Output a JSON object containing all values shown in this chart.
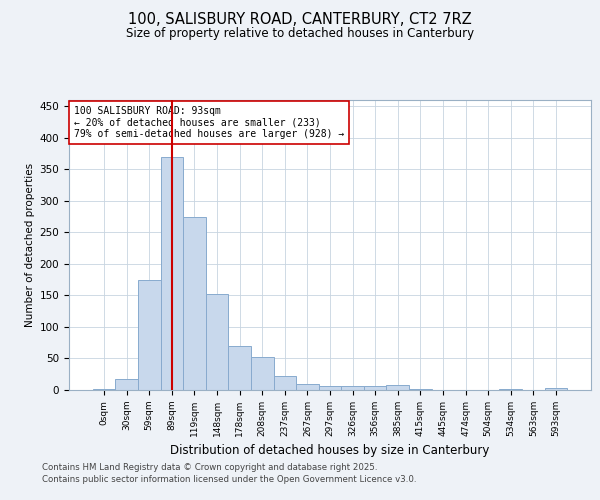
{
  "title1": "100, SALISBURY ROAD, CANTERBURY, CT2 7RZ",
  "title2": "Size of property relative to detached houses in Canterbury",
  "xlabel": "Distribution of detached houses by size in Canterbury",
  "ylabel": "Number of detached properties",
  "bar_labels": [
    "0sqm",
    "30sqm",
    "59sqm",
    "89sqm",
    "119sqm",
    "148sqm",
    "178sqm",
    "208sqm",
    "237sqm",
    "267sqm",
    "297sqm",
    "326sqm",
    "356sqm",
    "385sqm",
    "415sqm",
    "445sqm",
    "474sqm",
    "504sqm",
    "534sqm",
    "563sqm",
    "593sqm"
  ],
  "bar_values": [
    2,
    18,
    175,
    370,
    275,
    152,
    70,
    53,
    23,
    9,
    6,
    6,
    6,
    8,
    1,
    0,
    0,
    0,
    1,
    0,
    3
  ],
  "bar_color": "#c8d8ec",
  "bar_edgecolor": "#88aace",
  "vline_x": 3,
  "vline_color": "#cc0000",
  "annotation_text": "100 SALISBURY ROAD: 93sqm\n← 20% of detached houses are smaller (233)\n79% of semi-detached houses are larger (928) →",
  "annotation_box_color": "#ffffff",
  "annotation_box_edgecolor": "#cc0000",
  "ylim": [
    0,
    460
  ],
  "yticks": [
    0,
    50,
    100,
    150,
    200,
    250,
    300,
    350,
    400,
    450
  ],
  "footnote1": "Contains HM Land Registry data © Crown copyright and database right 2025.",
  "footnote2": "Contains public sector information licensed under the Open Government Licence v3.0.",
  "bg_color": "#eef2f7",
  "plot_bg_color": "#ffffff",
  "grid_color": "#c8d4e0"
}
